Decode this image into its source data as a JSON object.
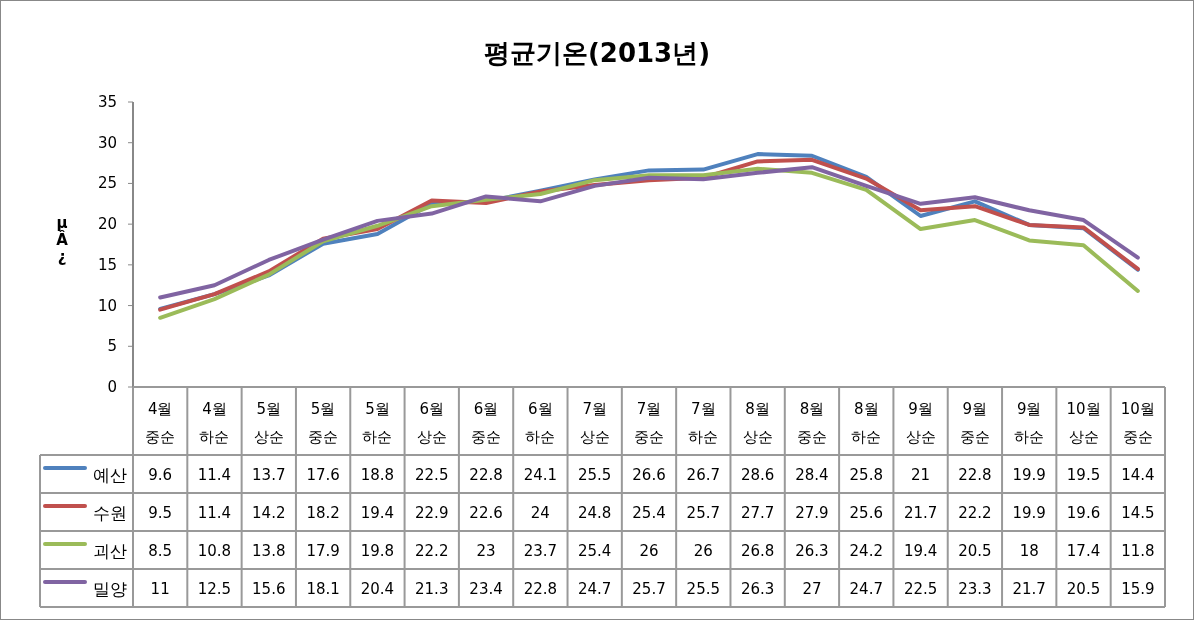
{
  "chart_data": {
    "type": "line",
    "title": "평균기온(2013년)",
    "ylabel": "µÂ¿",
    "categories": [
      "4월 중순",
      "4월 하순",
      "5월 상순",
      "5월 중순",
      "5월 하순",
      "6월 상순",
      "6월 중순",
      "6월 하순",
      "7월 상순",
      "7월 중순",
      "7월 하순",
      "8월 상순",
      "8월 중순",
      "8월 하순",
      "9월 상순",
      "9월 중순",
      "9월 하순",
      "10월 상순",
      "10월 중순"
    ],
    "series": [
      {
        "name": "예산",
        "color": "#4f81bd",
        "values": [
          9.6,
          11.4,
          13.7,
          17.6,
          18.8,
          22.5,
          22.8,
          24.1,
          25.5,
          26.6,
          26.7,
          28.6,
          28.4,
          25.8,
          21,
          22.8,
          19.9,
          19.5,
          14.4
        ]
      },
      {
        "name": "수원",
        "color": "#c0504d",
        "values": [
          9.5,
          11.4,
          14.2,
          18.2,
          19.4,
          22.9,
          22.6,
          24,
          24.8,
          25.4,
          25.7,
          27.7,
          27.9,
          25.6,
          21.7,
          22.2,
          19.9,
          19.6,
          14.5
        ]
      },
      {
        "name": "괴산",
        "color": "#9bbb59",
        "values": [
          8.5,
          10.8,
          13.8,
          17.9,
          19.8,
          22.2,
          23,
          23.7,
          25.4,
          26,
          26,
          26.8,
          26.3,
          24.2,
          19.4,
          20.5,
          18,
          17.4,
          11.8
        ]
      },
      {
        "name": "밀양",
        "color": "#8064a2",
        "values": [
          11,
          12.5,
          15.6,
          18.1,
          20.4,
          21.3,
          23.4,
          22.8,
          24.7,
          25.7,
          25.5,
          26.3,
          27,
          24.7,
          22.5,
          23.3,
          21.7,
          20.5,
          15.9
        ]
      }
    ],
    "ylim": [
      0,
      35
    ],
    "yticks": [
      0,
      5,
      10,
      15,
      20,
      25,
      30,
      35
    ],
    "grid": false,
    "legend": "bottom",
    "data_labels": true,
    "marker": "none",
    "line_style": "solid"
  }
}
